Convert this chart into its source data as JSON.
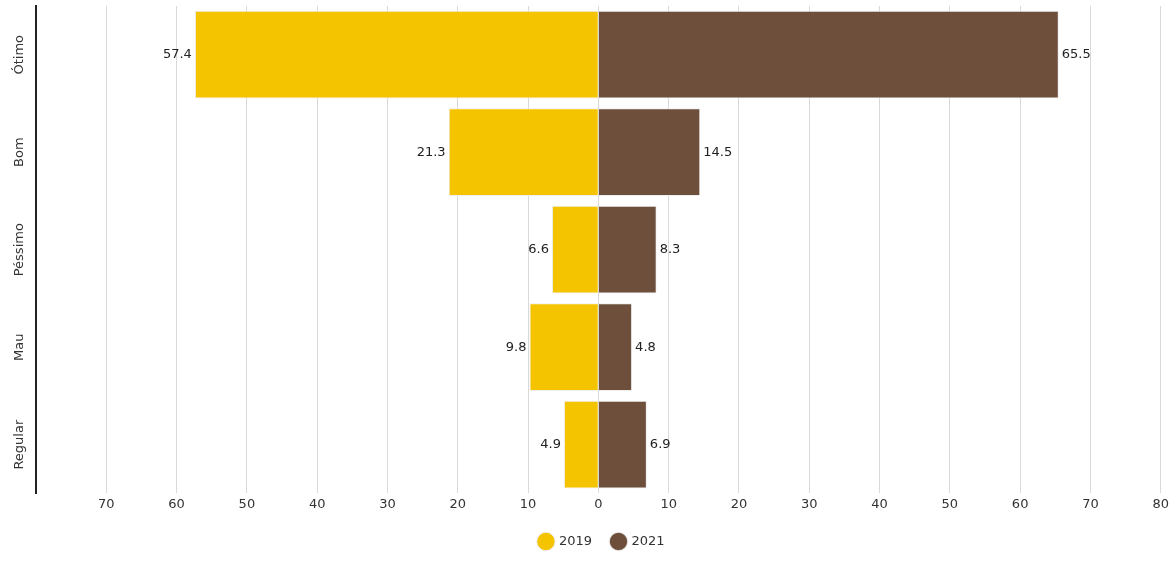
{
  "chart_data": {
    "type": "bar",
    "orientation": "horizontal",
    "categories": [
      "Ótimo",
      "Bom",
      "Péssimo",
      "Mau",
      "Regular"
    ],
    "series": [
      {
        "name": "2019",
        "color": "#f5c400",
        "base": [
          -57.4,
          -21.3,
          -6.6,
          -9.8,
          -4.9
        ],
        "values": [
          57.4,
          21.3,
          6.6,
          9.8,
          4.9
        ]
      },
      {
        "name": "2021",
        "color": "#6d4f3c",
        "values": [
          65.5,
          14.5,
          8.3,
          4.8,
          6.9
        ]
      }
    ],
    "xlim": [
      -80,
      80
    ],
    "xticks": [
      {
        "value": -80,
        "label": null
      },
      {
        "value": -70,
        "label": "70"
      },
      {
        "value": -60,
        "label": "60"
      },
      {
        "value": -50,
        "label": "50"
      },
      {
        "value": -40,
        "label": "40"
      },
      {
        "value": -30,
        "label": "30"
      },
      {
        "value": -20,
        "label": "20"
      },
      {
        "value": -10,
        "label": "10"
      },
      0,
      10,
      20,
      30,
      40,
      50,
      60,
      70,
      80
    ],
    "grid": "x",
    "legend": "bottom",
    "data_labels": true
  }
}
